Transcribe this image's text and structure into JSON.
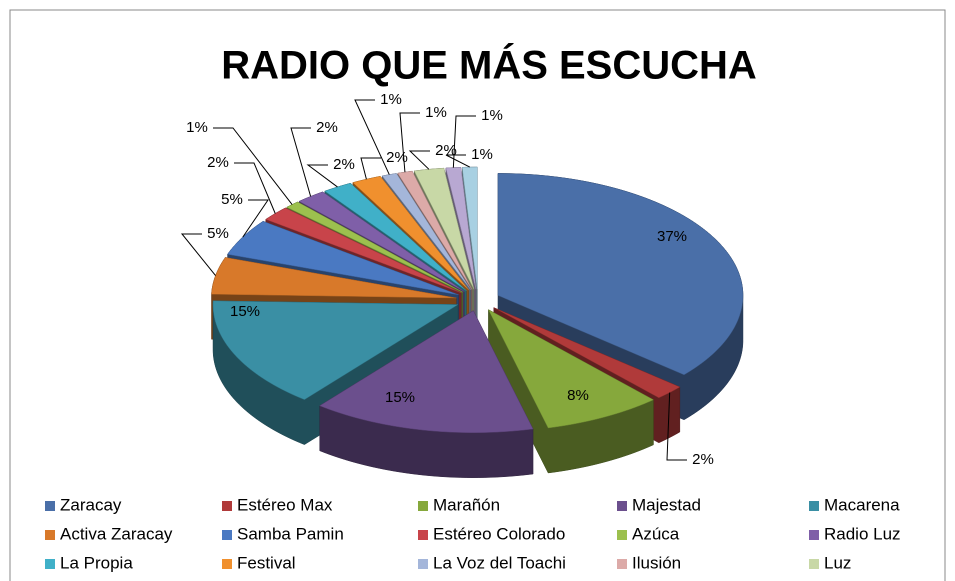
{
  "chart_data": {
    "type": "pie3d",
    "title": "RADIO QUE MÁS ESCUCHA",
    "categories": [
      "Zaracay",
      "Estéreo Max",
      "Marañón",
      "Majestad",
      "Macarena",
      "Activa Zaracay",
      "Samba Pamin",
      "Estéreo Colorado",
      "Azúca",
      "Radio Luz",
      "La Propia",
      "Festival",
      "La Voz del Toachi",
      "Ilusión",
      "Luz",
      null,
      null
    ],
    "values": [
      37,
      2,
      8,
      15,
      15,
      5,
      5,
      2,
      1,
      2,
      2,
      2,
      1,
      1,
      2,
      1,
      1
    ],
    "value_labels": [
      "37%",
      "2%",
      "8%",
      "15%",
      "15%",
      "5%",
      "5%",
      "2%",
      "1%",
      "2%",
      "2%",
      "2%",
      "1%",
      "1%",
      "2%",
      "1%",
      "1%"
    ],
    "colors": [
      "#4a6fa8",
      "#b03a3a",
      "#86a83c",
      "#6b4f8d",
      "#3a8fa4",
      "#d8792a",
      "#4a79c2",
      "#c8444a",
      "#9cc04e",
      "#7f5fa8",
      "#40b0c8",
      "#f0902e",
      "#a4b6da",
      "#dcaaa8",
      "#c8d8a6",
      "#b8a8d2",
      "#a8d0e2"
    ],
    "legend": "bottom"
  }
}
